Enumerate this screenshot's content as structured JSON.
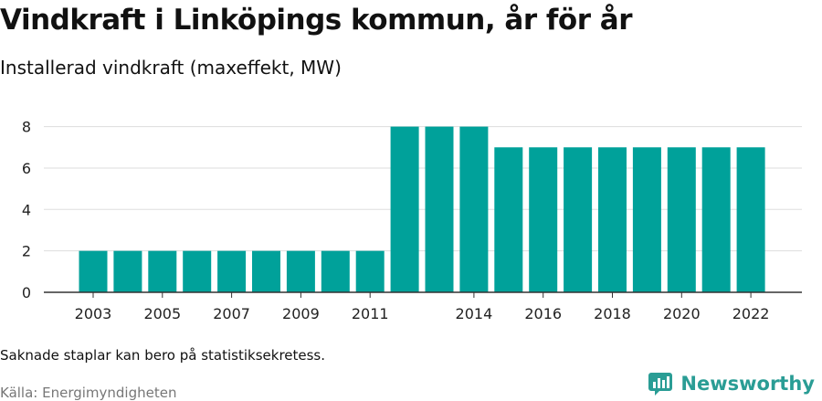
{
  "header": {
    "title": "Vindkraft i Linköpings kommun, år för år",
    "subtitle": "Installerad vindkraft (maxeffekt, MW)"
  },
  "footer": {
    "note": "Saknade staplar kan bero på statistiksekretess.",
    "source": "Källa: Energimyndigheten",
    "brand": "Newsworthy"
  },
  "colors": {
    "bar": "#00a19a",
    "grid": "#dddddd",
    "axis": "#333333",
    "brand": "#2a9d95"
  },
  "brand_icon": "newsworthy-logo-icon",
  "chart_data": {
    "type": "bar",
    "title": "Vindkraft i Linköpings kommun, år för år",
    "subtitle": "Installerad vindkraft (maxeffekt, MW)",
    "xlabel": "",
    "ylabel": "",
    "categories": [
      "2003",
      "2004",
      "2005",
      "2006",
      "2007",
      "2008",
      "2009",
      "2010",
      "2011",
      "2012",
      "2013",
      "2014",
      "2015",
      "2016",
      "2017",
      "2018",
      "2019",
      "2020",
      "2021",
      "2022"
    ],
    "values": [
      2,
      2,
      2,
      2,
      2,
      2,
      2,
      2,
      2,
      8,
      8,
      8,
      7,
      7,
      7,
      7,
      7,
      7,
      7,
      7
    ],
    "x_tick_labels": [
      "2003",
      "2005",
      "2007",
      "2009",
      "2011",
      "2014",
      "2016",
      "2018",
      "2020",
      "2022"
    ],
    "y_ticks": [
      0,
      2,
      4,
      6,
      8
    ],
    "ylim": [
      0,
      8.6
    ],
    "grid": true,
    "legend": "none"
  }
}
